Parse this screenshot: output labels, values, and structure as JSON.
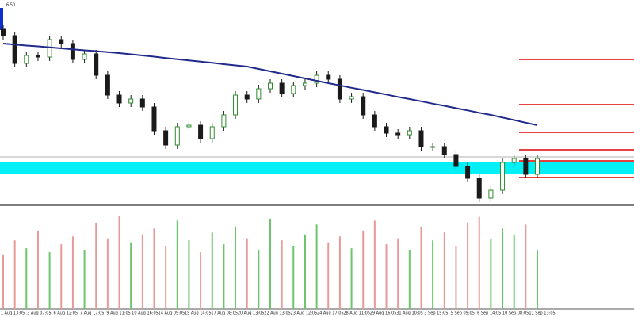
{
  "chart_data": {
    "type": "candlestick",
    "corner_label": "6.50",
    "up_color": "#2e8b2e",
    "down_color": "#1a1a1a",
    "ylim": [
      0,
      100
    ],
    "open": [
      88,
      84.4,
      70.4,
      74.4,
      73.6,
      82.4,
      80.4,
      72.4,
      75.2,
      64.4,
      54.4,
      50.4,
      52.4,
      48.4,
      36.4,
      29.2,
      38.4,
      39.2,
      32.4,
      38.4,
      44.4,
      54.4,
      52.4,
      57.6,
      60.4,
      55.2,
      59.2,
      60.4,
      64.4,
      62.4,
      52.4,
      53.6,
      44.4,
      38.4,
      35.2,
      34.4,
      36.4,
      28.4,
      28.4,
      24.4,
      18.4,
      12.4,
      2.4,
      6.4,
      20.4,
      22.4,
      14.4
    ],
    "high": [
      90,
      86.4,
      76.4,
      76.4,
      84.4,
      84.4,
      82.4,
      77.2,
      77.2,
      66.4,
      56.4,
      54.4,
      54.4,
      50.4,
      38.4,
      40.4,
      41.2,
      41.2,
      40.4,
      46.4,
      56.4,
      56.4,
      59.6,
      62.4,
      62.4,
      61.2,
      62.4,
      66.4,
      66.4,
      64.4,
      55.6,
      55.6,
      46.4,
      40.4,
      37.2,
      38.4,
      38.4,
      30.4,
      30.4,
      26.4,
      20.4,
      14.4,
      8.4,
      22.4,
      24.4,
      24.4,
      24.4
    ],
    "low": [
      82.4,
      68.4,
      68.4,
      71.6,
      71.6,
      78.4,
      70.4,
      70.4,
      62.4,
      52.4,
      48.4,
      48.4,
      46.4,
      34.4,
      27.2,
      27.2,
      36.4,
      30.4,
      30.4,
      36.4,
      42.4,
      50.4,
      50.4,
      55.6,
      53.2,
      53.2,
      57.2,
      58.4,
      60.4,
      50.4,
      50.4,
      42.4,
      36.4,
      33.2,
      32.4,
      32.4,
      26.4,
      26.4,
      22.4,
      16.4,
      10.4,
      0.4,
      0.4,
      4.4,
      18.4,
      12.4,
      12.4
    ],
    "close": [
      84.4,
      70.4,
      74.4,
      73.6,
      82.4,
      80.4,
      72.4,
      75.2,
      64.4,
      54.4,
      50.4,
      52.4,
      48.4,
      36.4,
      29.2,
      38.4,
      39.2,
      32.4,
      38.4,
      44.4,
      54.4,
      52.4,
      57.6,
      60.4,
      55.2,
      59.2,
      60.4,
      64.4,
      62.4,
      52.4,
      53.6,
      44.4,
      38.4,
      35.2,
      34.4,
      36.4,
      28.4,
      28.4,
      24.4,
      18.4,
      12.4,
      2.4,
      6.4,
      20.4,
      22.4,
      14.4,
      22.4
    ],
    "ma": {
      "color": "#1f2a8a",
      "values": [
        80.4,
        79.9,
        79.4,
        79.0,
        78.5,
        78.0,
        77.5,
        77.0,
        76.6,
        76.1,
        75.6,
        75.0,
        74.4,
        73.8,
        73.1,
        72.5,
        71.9,
        71.3,
        70.7,
        70.0,
        69.4,
        68.8,
        67.6,
        66.4,
        65.2,
        64.0,
        62.8,
        61.6,
        60.4,
        59.3,
        58.1,
        57.0,
        55.8,
        54.7,
        53.5,
        52.4,
        51.3,
        50.1,
        49.0,
        47.8,
        46.7,
        45.5,
        44.4,
        43.1,
        41.8,
        40.5,
        39.2
      ]
    },
    "levels": {
      "color": "#e00000",
      "values": [
        72.4,
        49.6,
        35.6,
        26.8,
        21.2,
        12.8
      ]
    },
    "zone": {
      "color": "#00f0f8",
      "values": [
        20.4,
        14.8
      ]
    },
    "reference_line": {
      "color": "#b0b0b0",
      "value": 23.2
    },
    "volume": {
      "ylim": [
        0,
        100
      ],
      "up_color": "#6cc46c",
      "down_color": "#e89a9a",
      "values": [
        55,
        70,
        62,
        80,
        58,
        66,
        74,
        60,
        88,
        72,
        95,
        68,
        76,
        82,
        64,
        90,
        70,
        58,
        78,
        66,
        84,
        72,
        60,
        92,
        70,
        64,
        76,
        86,
        68,
        74,
        62,
        80,
        90,
        66,
        72,
        60,
        84,
        70,
        78,
        64,
        88,
        94,
        72,
        82,
        76,
        86,
        60
      ]
    },
    "x_labels": [
      "1 Aug 13:05",
      "3 Aug 07:05",
      "6 Aug 12:05",
      "7 Aug 17:05",
      "9 Aug 11:05",
      "10 Aug 16:05",
      "14 Aug 09:05",
      "15 Aug 14:05",
      "17 Aug 08:05",
      "20 Aug 13:05",
      "22 Aug 13:05",
      "23 Aug 12:05",
      "24 Aug 17:05",
      "28 Aug 11:05",
      "29 Aug 16:05",
      "31 Aug 10:05",
      "3 Sep 15:05",
      "5 Sep 09:05",
      "6 Sep 14:05",
      "10 Sep 08:05",
      "11 Sep 13:05"
    ]
  }
}
